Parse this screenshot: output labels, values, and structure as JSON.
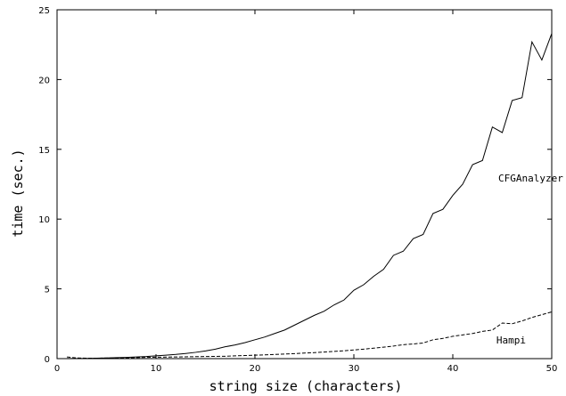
{
  "chart_data": {
    "type": "line",
    "title": "",
    "xlabel": "string size (characters)",
    "ylabel": "time (sec.)",
    "xlim": [
      0,
      50
    ],
    "ylim": [
      0,
      25
    ],
    "x_ticks": [
      0,
      10,
      20,
      30,
      40,
      50
    ],
    "y_ticks": [
      0,
      5,
      10,
      15,
      20,
      25
    ],
    "grid": false,
    "legend": "none",
    "series": [
      {
        "name": "CFGAnalyzer",
        "style": "solid",
        "color": "#000000",
        "x": [
          1,
          2,
          3,
          4,
          5,
          6,
          7,
          8,
          9,
          10,
          11,
          12,
          13,
          14,
          15,
          16,
          17,
          18,
          19,
          20,
          21,
          22,
          23,
          24,
          25,
          26,
          27,
          28,
          29,
          30,
          31,
          32,
          33,
          34,
          35,
          36,
          37,
          38,
          39,
          40,
          41,
          42,
          43,
          44,
          45,
          46,
          47,
          48,
          49,
          50
        ],
        "y": [
          0.01,
          0.01,
          0.02,
          0.03,
          0.05,
          0.07,
          0.09,
          0.12,
          0.15,
          0.2,
          0.25,
          0.3,
          0.37,
          0.45,
          0.55,
          0.68,
          0.85,
          0.98,
          1.15,
          1.35,
          1.55,
          1.8,
          2.05,
          2.4,
          2.75,
          3.1,
          3.4,
          3.85,
          4.2,
          4.9,
          5.3,
          5.9,
          6.4,
          7.4,
          7.7,
          8.6,
          8.9,
          10.4,
          10.7,
          11.7,
          12.5,
          13.9,
          14.2,
          16.6,
          16.2,
          18.5,
          18.7,
          22.7,
          21.4,
          23.3
        ]
      },
      {
        "name": "Hampi",
        "style": "dashed",
        "color": "#000000",
        "x": [
          1,
          2,
          3,
          4,
          5,
          6,
          7,
          8,
          9,
          10,
          11,
          12,
          13,
          14,
          15,
          16,
          17,
          18,
          19,
          20,
          21,
          22,
          23,
          24,
          25,
          26,
          27,
          28,
          29,
          30,
          31,
          32,
          33,
          34,
          35,
          36,
          37,
          38,
          39,
          40,
          41,
          42,
          43,
          44,
          45,
          46,
          47,
          48,
          49,
          50
        ],
        "y": [
          0.12,
          0.05,
          0.03,
          0.03,
          0.04,
          0.05,
          0.06,
          0.07,
          0.09,
          0.1,
          0.11,
          0.12,
          0.13,
          0.14,
          0.15,
          0.16,
          0.17,
          0.2,
          0.22,
          0.25,
          0.27,
          0.3,
          0.33,
          0.36,
          0.4,
          0.43,
          0.47,
          0.52,
          0.56,
          0.62,
          0.68,
          0.75,
          0.82,
          0.9,
          1.0,
          1.05,
          1.12,
          1.35,
          1.45,
          1.6,
          1.7,
          1.8,
          1.95,
          2.05,
          2.55,
          2.5,
          2.7,
          2.95,
          3.15,
          3.35
        ]
      }
    ],
    "annotations": [
      {
        "text": "CFGAnalyzer",
        "x": 44.6,
        "y": 12.7
      },
      {
        "text": "Hampi",
        "x": 44.4,
        "y": 1.1
      }
    ]
  }
}
